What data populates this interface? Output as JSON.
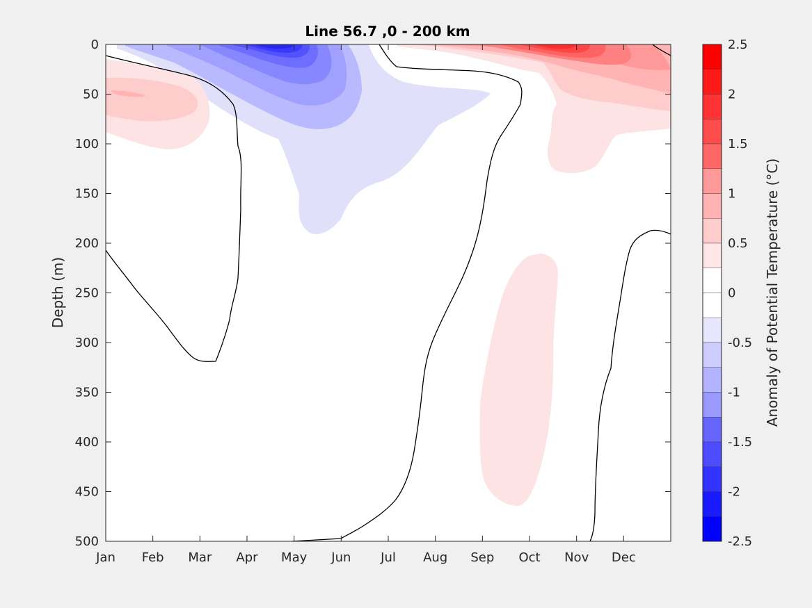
{
  "chart_data": {
    "type": "heatmap",
    "title": "Line 56.7 ,0 - 200 km",
    "xlabel": "",
    "ylabel": "Depth (m)",
    "x_categories": [
      "Jan",
      "Feb",
      "Mar",
      "Apr",
      "May",
      "Jun",
      "Jul",
      "Aug",
      "Sep",
      "Oct",
      "Nov",
      "Dec"
    ],
    "xlim": [
      0,
      12
    ],
    "ylim": [
      0,
      500
    ],
    "y_reversed": true,
    "y_ticks": [
      0,
      50,
      100,
      150,
      200,
      250,
      300,
      350,
      400,
      450,
      500
    ],
    "grid": false,
    "colorbar": {
      "label": "Anomaly of Potential Temperature (°C)",
      "range": [
        -2.5,
        2.5
      ],
      "step": 0.25,
      "tick_labels": [
        "2.5",
        "2",
        "1.5",
        "1",
        "0.5",
        "0",
        "-0.5",
        "-1",
        "-1.5",
        "-2",
        "-2.5"
      ],
      "tick_values": [
        2.5,
        2,
        1.5,
        1,
        0.5,
        0,
        -0.5,
        -1,
        -1.5,
        -2,
        -2.5
      ],
      "colors": [
        "#0000ff",
        "#1a1aff",
        "#3333ff",
        "#4d4dff",
        "#6666ff",
        "#8080ff",
        "#9999ff",
        "#b3b3ff",
        "#ccccff",
        "#e6e6ff",
        "#ffffff",
        "#ffffff",
        "#ffe6e6",
        "#ffcccc",
        "#ffb3b3",
        "#ff9999",
        "#ff8080",
        "#ff6666",
        "#ff4d4d",
        "#ff3333",
        "#ff1a1a",
        "#ff0000"
      ]
    },
    "features": [
      {
        "name": "cold-core",
        "sign": "negative",
        "peak_anomaly": -2.0,
        "center": [
          "Apr-May",
          5
        ],
        "extent_depth": 190
      },
      {
        "name": "warm-surface-autumn",
        "sign": "positive",
        "peak_anomaly": 2.0,
        "center": [
          "Oct",
          5
        ],
        "extent_depth": 130
      },
      {
        "name": "warm-winter-lens",
        "sign": "positive",
        "peak_anomaly": 0.75,
        "center": [
          "Feb",
          50
        ]
      },
      {
        "name": "warm-deep-lens",
        "sign": "positive",
        "peak_anomaly": 0.5,
        "center": [
          "Oct",
          340
        ]
      }
    ]
  }
}
